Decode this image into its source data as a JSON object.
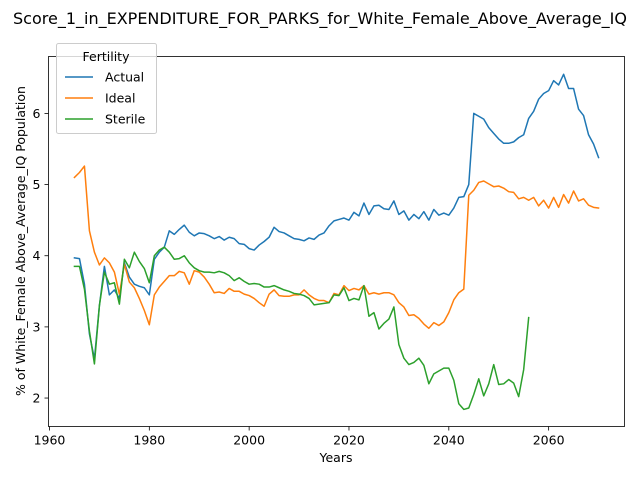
{
  "chart_data": {
    "type": "line",
    "title": "Score_1_in_EXPENDITURE_FOR_PARKS_for_White_Female_Above_Average_IQ",
    "xlabel": "Years",
    "ylabel": "% of White_Female Above_Average_IQ Population",
    "xlim": [
      1959.8,
      2075.2
    ],
    "ylim": [
      1.6,
      6.8
    ],
    "xticks": [
      1960,
      1980,
      2000,
      2020,
      2040,
      2060
    ],
    "yticks": [
      2,
      3,
      4,
      5,
      6
    ],
    "grid": false,
    "legend": {
      "title": "Fertility",
      "placement": "top-left"
    },
    "series": [
      {
        "name": "Actual",
        "color": "#1f77b4",
        "points": [
          [
            1965,
            3.97
          ],
          [
            1966,
            3.96
          ],
          [
            1967,
            3.6
          ],
          [
            1968,
            2.9
          ],
          [
            1969,
            2.55
          ],
          [
            1970,
            3.3
          ],
          [
            1971,
            3.85
          ],
          [
            1972,
            3.45
          ],
          [
            1973,
            3.52
          ],
          [
            1974,
            3.4
          ],
          [
            1975,
            3.9
          ],
          [
            1976,
            3.7
          ],
          [
            1977,
            3.6
          ],
          [
            1978,
            3.57
          ],
          [
            1979,
            3.55
          ],
          [
            1980,
            3.45
          ],
          [
            1981,
            3.95
          ],
          [
            1982,
            4.05
          ],
          [
            1983,
            4.12
          ],
          [
            1984,
            4.35
          ],
          [
            1985,
            4.3
          ],
          [
            1986,
            4.37
          ],
          [
            1987,
            4.43
          ],
          [
            1988,
            4.33
          ],
          [
            1989,
            4.28
          ],
          [
            1990,
            4.32
          ],
          [
            1991,
            4.31
          ],
          [
            1992,
            4.28
          ],
          [
            1993,
            4.24
          ],
          [
            1994,
            4.27
          ],
          [
            1995,
            4.22
          ],
          [
            1996,
            4.26
          ],
          [
            1997,
            4.24
          ],
          [
            1998,
            4.17
          ],
          [
            1999,
            4.16
          ],
          [
            2000,
            4.1
          ],
          [
            2001,
            4.08
          ],
          [
            2002,
            4.15
          ],
          [
            2003,
            4.2
          ],
          [
            2004,
            4.26
          ],
          [
            2005,
            4.4
          ],
          [
            2006,
            4.34
          ],
          [
            2007,
            4.32
          ],
          [
            2008,
            4.28
          ],
          [
            2009,
            4.24
          ],
          [
            2010,
            4.23
          ],
          [
            2011,
            4.21
          ],
          [
            2012,
            4.25
          ],
          [
            2013,
            4.23
          ],
          [
            2014,
            4.29
          ],
          [
            2015,
            4.32
          ],
          [
            2016,
            4.42
          ],
          [
            2017,
            4.49
          ],
          [
            2018,
            4.51
          ],
          [
            2019,
            4.53
          ],
          [
            2020,
            4.5
          ],
          [
            2021,
            4.61
          ],
          [
            2022,
            4.56
          ],
          [
            2023,
            4.74
          ],
          [
            2024,
            4.58
          ],
          [
            2025,
            4.7
          ],
          [
            2026,
            4.71
          ],
          [
            2027,
            4.66
          ],
          [
            2028,
            4.65
          ],
          [
            2029,
            4.77
          ],
          [
            2030,
            4.58
          ],
          [
            2031,
            4.63
          ],
          [
            2032,
            4.5
          ],
          [
            2033,
            4.58
          ],
          [
            2034,
            4.52
          ],
          [
            2035,
            4.62
          ],
          [
            2036,
            4.5
          ],
          [
            2037,
            4.65
          ],
          [
            2038,
            4.57
          ],
          [
            2039,
            4.6
          ],
          [
            2040,
            4.57
          ],
          [
            2041,
            4.67
          ],
          [
            2042,
            4.82
          ],
          [
            2043,
            4.83
          ],
          [
            2044,
            5.0
          ],
          [
            2045,
            6.0
          ],
          [
            2046,
            5.96
          ],
          [
            2047,
            5.92
          ],
          [
            2048,
            5.8
          ],
          [
            2049,
            5.72
          ],
          [
            2050,
            5.64
          ],
          [
            2051,
            5.58
          ],
          [
            2052,
            5.58
          ],
          [
            2053,
            5.6
          ],
          [
            2054,
            5.66
          ],
          [
            2055,
            5.7
          ],
          [
            2056,
            5.93
          ],
          [
            2057,
            6.03
          ],
          [
            2058,
            6.2
          ],
          [
            2059,
            6.28
          ],
          [
            2060,
            6.32
          ],
          [
            2061,
            6.46
          ],
          [
            2062,
            6.4
          ],
          [
            2063,
            6.55
          ],
          [
            2064,
            6.35
          ],
          [
            2065,
            6.35
          ],
          [
            2066,
            6.06
          ],
          [
            2067,
            5.97
          ],
          [
            2068,
            5.7
          ],
          [
            2069,
            5.57
          ],
          [
            2070,
            5.38
          ]
        ]
      },
      {
        "name": "Ideal",
        "color": "#ff7f0e",
        "points": [
          [
            1965,
            5.1
          ],
          [
            1966,
            5.17
          ],
          [
            1967,
            5.26
          ],
          [
            1968,
            4.35
          ],
          [
            1969,
            4.05
          ],
          [
            1970,
            3.87
          ],
          [
            1971,
            3.97
          ],
          [
            1972,
            3.9
          ],
          [
            1973,
            3.77
          ],
          [
            1974,
            3.46
          ],
          [
            1975,
            3.88
          ],
          [
            1976,
            3.63
          ],
          [
            1977,
            3.55
          ],
          [
            1978,
            3.4
          ],
          [
            1979,
            3.23
          ],
          [
            1980,
            3.03
          ],
          [
            1981,
            3.45
          ],
          [
            1982,
            3.56
          ],
          [
            1983,
            3.64
          ],
          [
            1984,
            3.72
          ],
          [
            1985,
            3.72
          ],
          [
            1986,
            3.78
          ],
          [
            1987,
            3.76
          ],
          [
            1988,
            3.6
          ],
          [
            1989,
            3.79
          ],
          [
            1990,
            3.77
          ],
          [
            1991,
            3.7
          ],
          [
            1992,
            3.6
          ],
          [
            1993,
            3.48
          ],
          [
            1994,
            3.49
          ],
          [
            1995,
            3.47
          ],
          [
            1996,
            3.54
          ],
          [
            1997,
            3.5
          ],
          [
            1998,
            3.5
          ],
          [
            1999,
            3.46
          ],
          [
            2000,
            3.44
          ],
          [
            2001,
            3.4
          ],
          [
            2002,
            3.34
          ],
          [
            2003,
            3.29
          ],
          [
            2004,
            3.46
          ],
          [
            2005,
            3.52
          ],
          [
            2006,
            3.44
          ],
          [
            2007,
            3.43
          ],
          [
            2008,
            3.43
          ],
          [
            2009,
            3.45
          ],
          [
            2010,
            3.45
          ],
          [
            2011,
            3.52
          ],
          [
            2012,
            3.45
          ],
          [
            2013,
            3.4
          ],
          [
            2014,
            3.37
          ],
          [
            2015,
            3.37
          ],
          [
            2016,
            3.34
          ],
          [
            2017,
            3.47
          ],
          [
            2018,
            3.45
          ],
          [
            2019,
            3.58
          ],
          [
            2020,
            3.51
          ],
          [
            2021,
            3.54
          ],
          [
            2022,
            3.52
          ],
          [
            2023,
            3.58
          ],
          [
            2024,
            3.46
          ],
          [
            2025,
            3.48
          ],
          [
            2026,
            3.46
          ],
          [
            2027,
            3.48
          ],
          [
            2028,
            3.48
          ],
          [
            2029,
            3.45
          ],
          [
            2030,
            3.34
          ],
          [
            2031,
            3.28
          ],
          [
            2032,
            3.16
          ],
          [
            2033,
            3.17
          ],
          [
            2034,
            3.12
          ],
          [
            2035,
            3.04
          ],
          [
            2036,
            2.98
          ],
          [
            2037,
            3.06
          ],
          [
            2038,
            3.02
          ],
          [
            2039,
            3.07
          ],
          [
            2040,
            3.2
          ],
          [
            2041,
            3.38
          ],
          [
            2042,
            3.48
          ],
          [
            2043,
            3.53
          ],
          [
            2044,
            4.85
          ],
          [
            2045,
            4.92
          ],
          [
            2046,
            5.03
          ],
          [
            2047,
            5.05
          ],
          [
            2048,
            5.01
          ],
          [
            2049,
            4.97
          ],
          [
            2050,
            4.98
          ],
          [
            2051,
            4.95
          ],
          [
            2052,
            4.9
          ],
          [
            2053,
            4.89
          ],
          [
            2054,
            4.8
          ],
          [
            2055,
            4.82
          ],
          [
            2056,
            4.78
          ],
          [
            2057,
            4.82
          ],
          [
            2058,
            4.7
          ],
          [
            2059,
            4.78
          ],
          [
            2060,
            4.67
          ],
          [
            2061,
            4.82
          ],
          [
            2062,
            4.68
          ],
          [
            2063,
            4.86
          ],
          [
            2064,
            4.74
          ],
          [
            2065,
            4.91
          ],
          [
            2066,
            4.77
          ],
          [
            2067,
            4.8
          ],
          [
            2068,
            4.71
          ],
          [
            2069,
            4.68
          ],
          [
            2070,
            4.67
          ]
        ]
      },
      {
        "name": "Sterile",
        "color": "#2ca02c",
        "points": [
          [
            1965,
            3.85
          ],
          [
            1966,
            3.85
          ],
          [
            1967,
            3.53
          ],
          [
            1968,
            2.94
          ],
          [
            1969,
            2.48
          ],
          [
            1970,
            3.3
          ],
          [
            1971,
            3.77
          ],
          [
            1972,
            3.6
          ],
          [
            1973,
            3.62
          ],
          [
            1974,
            3.32
          ],
          [
            1975,
            3.95
          ],
          [
            1976,
            3.83
          ],
          [
            1977,
            4.05
          ],
          [
            1978,
            3.92
          ],
          [
            1979,
            3.82
          ],
          [
            1980,
            3.62
          ],
          [
            1981,
            4.0
          ],
          [
            1982,
            4.08
          ],
          [
            1983,
            4.12
          ],
          [
            1984,
            4.05
          ],
          [
            1985,
            3.95
          ],
          [
            1986,
            3.96
          ],
          [
            1987,
            4.0
          ],
          [
            1988,
            3.9
          ],
          [
            1989,
            3.83
          ],
          [
            1990,
            3.79
          ],
          [
            1991,
            3.77
          ],
          [
            1992,
            3.77
          ],
          [
            1993,
            3.76
          ],
          [
            1994,
            3.78
          ],
          [
            1995,
            3.76
          ],
          [
            1996,
            3.72
          ],
          [
            1997,
            3.65
          ],
          [
            1998,
            3.69
          ],
          [
            1999,
            3.64
          ],
          [
            2000,
            3.6
          ],
          [
            2001,
            3.61
          ],
          [
            2002,
            3.6
          ],
          [
            2003,
            3.56
          ],
          [
            2004,
            3.56
          ],
          [
            2005,
            3.58
          ],
          [
            2006,
            3.55
          ],
          [
            2007,
            3.52
          ],
          [
            2008,
            3.5
          ],
          [
            2009,
            3.47
          ],
          [
            2010,
            3.46
          ],
          [
            2011,
            3.44
          ],
          [
            2012,
            3.4
          ],
          [
            2013,
            3.31
          ],
          [
            2014,
            3.32
          ],
          [
            2015,
            3.33
          ],
          [
            2016,
            3.34
          ],
          [
            2017,
            3.45
          ],
          [
            2018,
            3.44
          ],
          [
            2019,
            3.55
          ],
          [
            2020,
            3.37
          ],
          [
            2021,
            3.4
          ],
          [
            2022,
            3.38
          ],
          [
            2023,
            3.58
          ],
          [
            2024,
            3.15
          ],
          [
            2025,
            3.2
          ],
          [
            2026,
            2.97
          ],
          [
            2027,
            3.05
          ],
          [
            2028,
            3.11
          ],
          [
            2029,
            3.28
          ],
          [
            2030,
            2.75
          ],
          [
            2031,
            2.56
          ],
          [
            2032,
            2.47
          ],
          [
            2033,
            2.5
          ],
          [
            2034,
            2.56
          ],
          [
            2035,
            2.46
          ],
          [
            2036,
            2.2
          ],
          [
            2037,
            2.34
          ],
          [
            2038,
            2.38
          ],
          [
            2039,
            2.42
          ],
          [
            2040,
            2.42
          ],
          [
            2041,
            2.25
          ],
          [
            2042,
            1.92
          ],
          [
            2043,
            1.84
          ],
          [
            2044,
            1.86
          ],
          [
            2045,
            2.05
          ],
          [
            2046,
            2.27
          ],
          [
            2047,
            2.03
          ],
          [
            2048,
            2.2
          ],
          [
            2049,
            2.47
          ],
          [
            2050,
            2.19
          ],
          [
            2051,
            2.2
          ],
          [
            2052,
            2.26
          ],
          [
            2053,
            2.21
          ],
          [
            2054,
            2.02
          ],
          [
            2055,
            2.4
          ],
          [
            2056,
            3.13
          ]
        ]
      }
    ]
  }
}
